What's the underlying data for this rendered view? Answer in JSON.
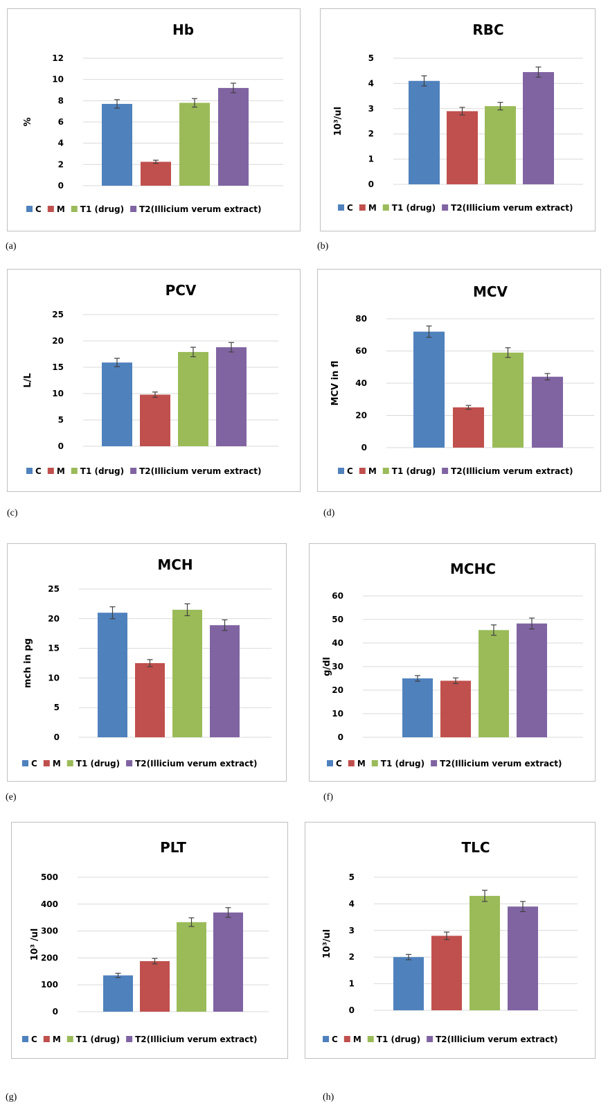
{
  "legend_labels": [
    "C",
    "M",
    "T1 (drug)",
    "T2(Illicium verum extract)"
  ],
  "colors": [
    "#4f81bd",
    "#c0504d",
    "#9bbb59",
    "#8064a2"
  ],
  "chart_data": [
    {
      "id": "hb",
      "caption": "(a)",
      "type": "bar",
      "title": "Hb",
      "ylabel": "%",
      "categories": [
        "C",
        "M",
        "T1 (drug)",
        "T2(Illicium verum extract)"
      ],
      "values": [
        7.7,
        2.25,
        7.8,
        9.2
      ],
      "errors": [
        0.4,
        0.15,
        0.4,
        0.45
      ],
      "ylim": [
        0,
        12
      ],
      "yticks": [
        0,
        2,
        4,
        6,
        8,
        10,
        12
      ],
      "grid": true,
      "legend": "bottom"
    },
    {
      "id": "rbc",
      "caption": "(b)",
      "type": "bar",
      "title": "RBC",
      "ylabel": "10³/ul",
      "categories": [
        "C",
        "M",
        "T1 (drug)",
        "T2(Illicium verum extract)"
      ],
      "values": [
        4.1,
        2.9,
        3.1,
        4.45
      ],
      "errors": [
        0.2,
        0.15,
        0.15,
        0.2
      ],
      "ylim": [
        0,
        5
      ],
      "yticks": [
        0,
        1,
        2,
        3,
        4,
        5
      ],
      "grid": true,
      "legend": "bottom"
    },
    {
      "id": "pcv",
      "caption": "(c)",
      "type": "bar",
      "title": "PCV",
      "ylabel": "L/L",
      "categories": [
        "C",
        "M",
        "T1 (drug)",
        "T2(Illicium verum extract)"
      ],
      "values": [
        15.9,
        9.8,
        17.9,
        18.8
      ],
      "errors": [
        0.8,
        0.5,
        0.9,
        0.9
      ],
      "ylim": [
        0,
        25
      ],
      "yticks": [
        0,
        5,
        10,
        15,
        20,
        25
      ],
      "grid": true,
      "legend": "bottom"
    },
    {
      "id": "mcv",
      "caption": "(d)",
      "type": "bar",
      "title": "MCV",
      "ylabel": "MCV in fl",
      "categories": [
        "C",
        "M",
        "T1 (drug)",
        "T2(Illicium verum extract)"
      ],
      "values": [
        72,
        25,
        59,
        44
      ],
      "errors": [
        3.5,
        1.2,
        3,
        2
      ],
      "ylim": [
        0,
        80
      ],
      "yticks": [
        0,
        20,
        40,
        60,
        80
      ],
      "grid": true,
      "legend": "bottom"
    },
    {
      "id": "mch",
      "caption": "(e)",
      "type": "bar",
      "title": "MCH",
      "ylabel": "mch in pg",
      "categories": [
        "C",
        "M",
        "T1 (drug)",
        "T2(Illicium verum extract)"
      ],
      "values": [
        21,
        12.5,
        21.5,
        18.9
      ],
      "errors": [
        1.0,
        0.6,
        1.0,
        0.9
      ],
      "ylim": [
        0,
        25
      ],
      "yticks": [
        0,
        5,
        10,
        15,
        20,
        25
      ],
      "grid": true,
      "legend": "bottom"
    },
    {
      "id": "mchc",
      "caption": "(f)",
      "type": "bar",
      "title": "MCHC",
      "ylabel": "g/dl",
      "categories": [
        "C",
        "M",
        "T1 (drug)",
        "T2(Illicium verum extract)"
      ],
      "values": [
        25,
        24,
        45.5,
        48.3
      ],
      "errors": [
        1.2,
        1.2,
        2.2,
        2.3
      ],
      "ylim": [
        0,
        60
      ],
      "yticks": [
        0,
        10,
        20,
        30,
        40,
        50,
        60
      ],
      "grid": true,
      "legend": "bottom"
    },
    {
      "id": "plt",
      "caption": "(g)",
      "type": "bar",
      "title": "PLT",
      "ylabel": "10³ /ul",
      "categories": [
        "C",
        "M",
        "T1 (drug)",
        "T2(Illicium verum extract)"
      ],
      "values": [
        135,
        188,
        333,
        369
      ],
      "errors": [
        8,
        10,
        16,
        18
      ],
      "ylim": [
        0,
        500
      ],
      "yticks": [
        0,
        100,
        200,
        300,
        400,
        500
      ],
      "grid": true,
      "legend": "bottom"
    },
    {
      "id": "tlc",
      "caption": "(h)",
      "type": "bar",
      "title": "TLC",
      "ylabel": "10³/ul",
      "categories": [
        "C",
        "M",
        "T1 (drug)",
        "T2(Illicium verum extract)"
      ],
      "values": [
        2.0,
        2.8,
        4.3,
        3.9
      ],
      "errors": [
        0.1,
        0.14,
        0.21,
        0.19
      ],
      "ylim": [
        0,
        5
      ],
      "yticks": [
        0,
        1,
        2,
        3,
        4,
        5
      ],
      "grid": true,
      "legend": "bottom"
    }
  ]
}
